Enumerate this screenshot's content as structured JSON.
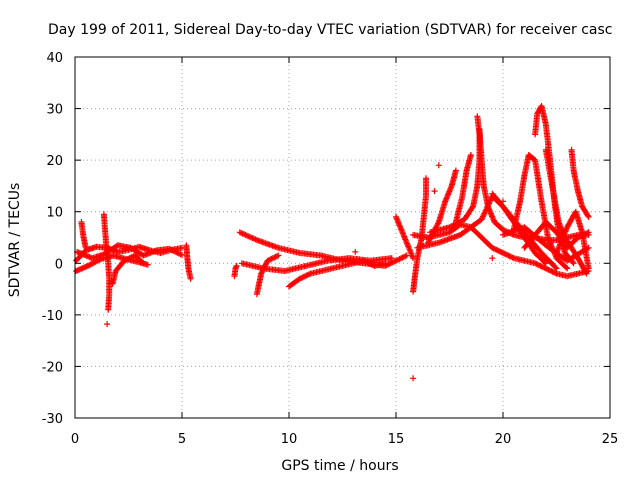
{
  "chart_data": {
    "type": "scatter",
    "title": "Day 199 of 2011, Sidereal Day-to-day VTEC variation (SDTVAR) for receiver casc",
    "xlabel": "GPS time / hours",
    "ylabel": "SDTVAR / TECUs",
    "xlim": [
      0,
      25
    ],
    "ylim": [
      -30,
      40
    ],
    "x_ticks": [
      0,
      5,
      10,
      15,
      20,
      25
    ],
    "y_ticks": [
      -30,
      -20,
      -10,
      0,
      10,
      20,
      30,
      40
    ],
    "x_tick_labels": [
      "0",
      "5",
      "10",
      "15",
      "20",
      "25"
    ],
    "y_tick_labels": [
      "-30",
      "-20",
      "-10",
      "0",
      "10",
      "20",
      "30",
      "40"
    ],
    "grid": true,
    "marker": "+",
    "color": "#ff0000",
    "series": [
      {
        "name": "SDTVAR",
        "tracks": [
          [
            [
              0.05,
              0.5
            ],
            [
              0.5,
              2.5
            ],
            [
              1.0,
              3.2
            ],
            [
              1.5,
              3.0
            ],
            [
              2.0,
              2.2
            ],
            [
              2.5,
              2.6
            ],
            [
              3.0,
              3.2
            ],
            [
              3.5,
              2.5
            ],
            [
              4.0,
              2.0
            ],
            [
              4.5,
              2.6
            ],
            [
              5.0,
              3.0
            ]
          ],
          [
            [
              0.05,
              -1.5
            ],
            [
              0.6,
              -0.5
            ],
            [
              1.2,
              0.8
            ],
            [
              1.8,
              1.5
            ],
            [
              2.4,
              0.8
            ],
            [
              3.0,
              0.2
            ],
            [
              3.4,
              -0.3
            ]
          ],
          [
            [
              0.1,
              2.2
            ],
            [
              0.8,
              1.0
            ],
            [
              1.4,
              1.8
            ],
            [
              2.0,
              3.5
            ],
            [
              2.6,
              3.0
            ],
            [
              3.2,
              1.5
            ],
            [
              3.8,
              2.5
            ],
            [
              4.4,
              2.8
            ],
            [
              5.0,
              1.6
            ]
          ],
          [
            [
              0.3,
              8.0
            ],
            [
              0.4,
              5.0
            ],
            [
              0.5,
              3.0
            ]
          ],
          [
            [
              1.35,
              9.5
            ],
            [
              1.45,
              4.0
            ],
            [
              1.55,
              0.0
            ],
            [
              1.6,
              -3.0
            ],
            [
              1.6,
              -6.0
            ],
            [
              1.55,
              -9.0
            ]
          ],
          [
            [
              1.75,
              -4.0
            ],
            [
              1.9,
              -1.5
            ],
            [
              2.3,
              0.5
            ],
            [
              2.8,
              1.5
            ],
            [
              3.2,
              0.0
            ]
          ],
          [
            [
              5.2,
              3.5
            ],
            [
              5.25,
              1.0
            ],
            [
              5.3,
              -1.0
            ],
            [
              5.4,
              -3.0
            ]
          ],
          [
            [
              7.45,
              -2.5
            ],
            [
              7.5,
              -1.0
            ],
            [
              7.55,
              -0.5
            ]
          ],
          [
            [
              7.7,
              6.0
            ],
            [
              8.5,
              4.5
            ],
            [
              9.5,
              3.0
            ],
            [
              10.5,
              2.0
            ],
            [
              11.5,
              1.5
            ],
            [
              12.5,
              0.5
            ],
            [
              13.5,
              0.0
            ],
            [
              14.5,
              -0.5
            ],
            [
              15.5,
              1.5
            ]
          ],
          [
            [
              7.8,
              0.0
            ],
            [
              8.8,
              -1.0
            ],
            [
              9.8,
              -1.5
            ],
            [
              10.8,
              -0.5
            ],
            [
              11.8,
              0.5
            ],
            [
              12.8,
              1.0
            ],
            [
              13.8,
              0.5
            ],
            [
              14.8,
              1.0
            ]
          ],
          [
            [
              8.5,
              -6.0
            ],
            [
              8.7,
              -2.0
            ],
            [
              9.0,
              0.5
            ],
            [
              9.5,
              1.5
            ]
          ],
          [
            [
              10.0,
              -4.5
            ],
            [
              10.5,
              -3.0
            ],
            [
              11.0,
              -2.0
            ],
            [
              11.5,
              -1.5
            ],
            [
              12.0,
              -1.0
            ],
            [
              12.5,
              -0.5
            ],
            [
              13.0,
              0.0
            ],
            [
              13.5,
              0.5
            ],
            [
              14.0,
              -0.5
            ],
            [
              14.5,
              0.0
            ]
          ],
          [
            [
              15.0,
              9.0
            ],
            [
              15.3,
              6.0
            ],
            [
              15.6,
              3.0
            ],
            [
              15.8,
              1.0
            ]
          ],
          [
            [
              15.8,
              -5.5
            ],
            [
              15.9,
              -2.0
            ],
            [
              16.0,
              1.0
            ],
            [
              16.2,
              5.0
            ],
            [
              16.3,
              9.0
            ],
            [
              16.4,
              13.0
            ],
            [
              16.4,
              16.5
            ]
          ],
          [
            [
              15.8,
              5.5
            ],
            [
              16.5,
              5.0
            ],
            [
              17.0,
              5.5
            ],
            [
              17.5,
              6.0
            ],
            [
              18.0,
              7.5
            ],
            [
              18.5,
              7.0
            ],
            [
              19.0,
              5.0
            ],
            [
              19.5,
              3.0
            ],
            [
              20.0,
              2.0
            ],
            [
              20.5,
              1.0
            ],
            [
              21.0,
              0.5
            ],
            [
              21.5,
              0.0
            ],
            [
              22.0,
              -1.0
            ],
            [
              22.5,
              -2.0
            ],
            [
              23.0,
              -2.5
            ],
            [
              23.5,
              -2.0
            ],
            [
              24.0,
              -1.5
            ]
          ],
          [
            [
              16.0,
              3.0
            ],
            [
              17.0,
              4.0
            ],
            [
              18.0,
              5.5
            ],
            [
              19.0,
              8.5
            ],
            [
              19.5,
              13.0
            ],
            [
              20.0,
              11.0
            ],
            [
              20.5,
              8.0
            ],
            [
              21.0,
              5.0
            ],
            [
              21.5,
              2.0
            ],
            [
              22.0,
              0.0
            ]
          ],
          [
            [
              16.5,
              4.0
            ],
            [
              17.0,
              8.0
            ],
            [
              17.3,
              12.0
            ],
            [
              17.6,
              15.0
            ],
            [
              17.8,
              18.0
            ]
          ],
          [
            [
              16.6,
              6.0
            ],
            [
              17.5,
              7.0
            ],
            [
              18.2,
              8.5
            ],
            [
              18.6,
              11.0
            ],
            [
              18.8,
              15.0
            ],
            [
              18.9,
              20.0
            ],
            [
              18.9,
              25.0
            ],
            [
              18.8,
              28.5
            ]
          ],
          [
            [
              18.9,
              26.0
            ],
            [
              19.0,
              20.0
            ],
            [
              19.1,
              15.0
            ],
            [
              19.3,
              11.0
            ],
            [
              19.6,
              8.0
            ],
            [
              20.0,
              6.5
            ],
            [
              20.5,
              5.5
            ],
            [
              21.0,
              5.0
            ],
            [
              21.5,
              5.0
            ],
            [
              22.0,
              4.5
            ],
            [
              22.5,
              4.5
            ],
            [
              23.0,
              5.0
            ],
            [
              23.5,
              5.5
            ],
            [
              24.0,
              5.5
            ]
          ],
          [
            [
              19.5,
              13.5
            ],
            [
              20.2,
              10.0
            ],
            [
              21.0,
              6.0
            ],
            [
              21.8,
              2.0
            ],
            [
              22.5,
              -1.0
            ]
          ],
          [
            [
              17.8,
              8.0
            ],
            [
              18.1,
              13.0
            ],
            [
              18.3,
              18.0
            ],
            [
              18.5,
              21.0
            ]
          ],
          [
            [
              20.5,
              6.5
            ],
            [
              20.8,
              12.0
            ],
            [
              21.0,
              17.0
            ],
            [
              21.2,
              21.0
            ],
            [
              21.5,
              20.0
            ],
            [
              21.8,
              12.0
            ],
            [
              22.1,
              5.0
            ],
            [
              22.5,
              1.0
            ],
            [
              23.0,
              -1.0
            ]
          ],
          [
            [
              21.5,
              25.0
            ],
            [
              21.6,
              29.0
            ],
            [
              21.8,
              30.5
            ],
            [
              22.0,
              27.0
            ],
            [
              22.2,
              20.0
            ],
            [
              22.4,
              12.0
            ],
            [
              22.6,
              6.0
            ],
            [
              22.9,
              2.0
            ],
            [
              23.3,
              0.0
            ]
          ],
          [
            [
              22.0,
              22.0
            ],
            [
              22.3,
              15.0
            ],
            [
              22.6,
              8.0
            ],
            [
              22.9,
              5.0
            ],
            [
              23.2,
              3.0
            ],
            [
              23.5,
              1.0
            ],
            [
              23.9,
              -2.0
            ]
          ],
          [
            [
              23.2,
              22.0
            ],
            [
              23.3,
              18.0
            ],
            [
              23.5,
              14.0
            ],
            [
              23.7,
              11.0
            ],
            [
              24.0,
              9.0
            ]
          ],
          [
            [
              21.0,
              3.0
            ],
            [
              21.5,
              5.5
            ],
            [
              22.0,
              8.0
            ],
            [
              22.5,
              6.0
            ],
            [
              23.0,
              3.0
            ],
            [
              23.5,
              5.0
            ],
            [
              24.0,
              6.0
            ]
          ],
          [
            [
              22.5,
              2.0
            ],
            [
              23.0,
              7.0
            ],
            [
              23.4,
              10.0
            ],
            [
              23.7,
              6.0
            ],
            [
              24.0,
              -1.0
            ]
          ],
          [
            [
              20.0,
              5.5
            ],
            [
              21.0,
              7.0
            ],
            [
              22.0,
              3.5
            ],
            [
              23.0,
              0.5
            ],
            [
              24.0,
              3.0
            ]
          ]
        ],
        "points": [
          [
            15.8,
            -22.3
          ],
          [
            1.5,
            -11.8
          ],
          [
            13.1,
            2.2
          ],
          [
            17.0,
            19.0
          ],
          [
            16.8,
            14.0
          ],
          [
            20.0,
            12.0
          ],
          [
            19.5,
            1.0
          ]
        ]
      }
    ]
  }
}
